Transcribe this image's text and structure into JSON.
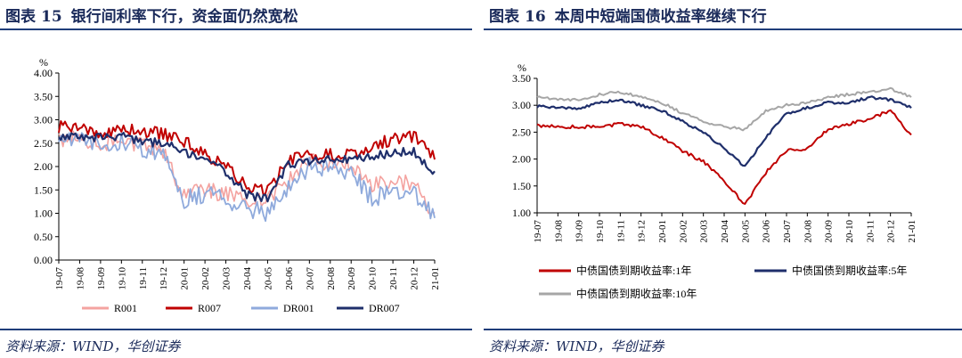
{
  "left": {
    "title_prefix": "图表",
    "title_number": "15",
    "title_text": "银行间利率下行，资金面仍然宽松",
    "source": "资料来源：WIND，华创证券"
  },
  "right": {
    "title_prefix": "图表",
    "title_number": "16",
    "title_text": "本周中短端国债收益率继续下行",
    "source": "资料来源：WIND，华创证券"
  },
  "colors": {
    "title": "#1a2a5a",
    "rule": "#1f3d7a",
    "R001": "#f4a3a0",
    "R007": "#c00000",
    "DR001": "#8faadc",
    "DR007": "#1f2f6b",
    "y1": "#c00000",
    "y5": "#1f2f6b",
    "y10": "#a6a6a6"
  },
  "chart_data": [
    {
      "type": "line",
      "ylabel": "%",
      "ylim": [
        0,
        4
      ],
      "yticks": [
        "0.00",
        "0.50",
        "1.00",
        "1.50",
        "2.00",
        "2.50",
        "3.00",
        "3.50",
        "4.00"
      ],
      "categories": [
        "19-07",
        "19-08",
        "19-09",
        "19-10",
        "19-11",
        "19-12",
        "20-01",
        "20-02",
        "20-03",
        "20-04",
        "20-05",
        "20-06",
        "20-07",
        "20-08",
        "20-09",
        "20-10",
        "20-11",
        "20-12",
        "21-01"
      ],
      "legend_position": "bottom",
      "series": [
        {
          "name": "R001",
          "color_key": "R001",
          "values": [
            2.55,
            2.6,
            2.5,
            2.55,
            2.45,
            2.3,
            1.4,
            1.5,
            1.4,
            1.3,
            1.3,
            1.7,
            2.1,
            2.1,
            2.0,
            1.6,
            1.7,
            1.6,
            1.0
          ]
        },
        {
          "name": "R007",
          "color_key": "R007",
          "values": [
            2.85,
            2.8,
            2.75,
            2.8,
            2.75,
            2.7,
            2.55,
            2.25,
            2.05,
            1.55,
            1.45,
            2.15,
            2.25,
            2.25,
            2.25,
            2.45,
            2.6,
            2.65,
            2.15
          ]
        },
        {
          "name": "DR001",
          "color_key": "DR001",
          "values": [
            2.5,
            2.55,
            2.45,
            2.55,
            2.4,
            2.25,
            1.3,
            1.4,
            1.3,
            1.1,
            1.0,
            1.6,
            2.0,
            2.0,
            1.9,
            1.3,
            1.5,
            1.4,
            0.9
          ]
        },
        {
          "name": "DR007",
          "color_key": "DR007",
          "values": [
            2.65,
            2.65,
            2.6,
            2.65,
            2.55,
            2.5,
            2.3,
            2.1,
            1.9,
            1.4,
            1.3,
            2.05,
            2.1,
            2.15,
            2.15,
            2.2,
            2.3,
            2.3,
            1.9
          ]
        }
      ]
    },
    {
      "type": "line",
      "ylabel": "%",
      "ylim": [
        1.0,
        3.5
      ],
      "yticks": [
        "1.00",
        "1.50",
        "2.00",
        "2.50",
        "3.00",
        "3.50"
      ],
      "categories": [
        "19-07",
        "19-08",
        "19-09",
        "19-10",
        "19-11",
        "19-12",
        "20-01",
        "20-02",
        "20-03",
        "20-04",
        "20-05",
        "20-06",
        "20-07",
        "20-08",
        "20-09",
        "20-10",
        "20-11",
        "20-12",
        "21-01"
      ],
      "legend_position": "bottom",
      "series": [
        {
          "name": "中债国债到期收益率:1年",
          "color_key": "y1",
          "values": [
            2.62,
            2.6,
            2.6,
            2.6,
            2.65,
            2.6,
            2.4,
            2.15,
            1.95,
            1.6,
            1.15,
            1.75,
            2.15,
            2.2,
            2.55,
            2.65,
            2.75,
            2.9,
            2.45
          ]
        },
        {
          "name": "中债国债到期收益率:5年",
          "color_key": "y5",
          "values": [
            2.98,
            2.95,
            2.95,
            3.05,
            3.1,
            3.0,
            2.9,
            2.7,
            2.5,
            2.2,
            1.85,
            2.4,
            2.85,
            2.95,
            3.05,
            3.05,
            3.15,
            3.1,
            2.95
          ]
        },
        {
          "name": "中债国债到期收益率:10年",
          "color_key": "y10",
          "values": [
            3.15,
            3.1,
            3.1,
            3.2,
            3.25,
            3.15,
            3.05,
            2.85,
            2.7,
            2.6,
            2.55,
            2.9,
            3.0,
            3.05,
            3.15,
            3.2,
            3.25,
            3.3,
            3.15
          ]
        }
      ]
    }
  ]
}
